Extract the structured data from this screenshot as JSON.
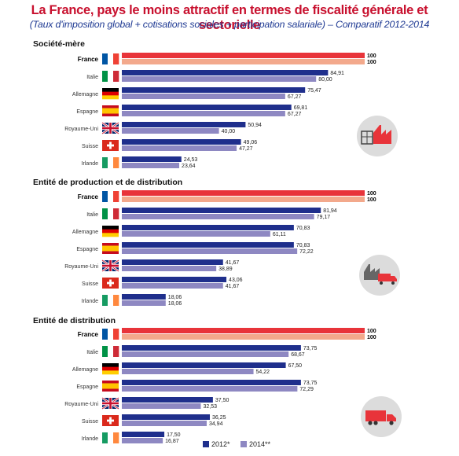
{
  "title": "La France, pays le moins attractif en termes de fiscalité générale et sectorielle",
  "subtitle": "(Taux d'imposition global + cotisations sociales + participation salariale) – Comparatif 2012-2014",
  "colors": {
    "title": "#c8102e",
    "subtitle": "#1f3a93",
    "france_2012": "#e8343a",
    "france_2014": "#f3a98c",
    "other_2012": "#1f2f8c",
    "other_2014": "#8e88c2",
    "icon_circle": "#dcdcdc",
    "icon_dark": "#666666",
    "icon_red": "#e8343a"
  },
  "chart_data": [
    {
      "type": "bar",
      "title": "Société-mère",
      "categories": [
        "France",
        "Italie",
        "Allemagne",
        "Espagne",
        "Royaume-Uni",
        "Suisse",
        "Irlande"
      ],
      "series": [
        {
          "name": "2012*",
          "values": [
            100,
            84.91,
            75.47,
            69.81,
            50.94,
            49.06,
            24.53
          ]
        },
        {
          "name": "2014**",
          "values": [
            100,
            80.0,
            67.27,
            67.27,
            40.0,
            47.27,
            23.64
          ]
        }
      ],
      "labels_2012": [
        "100",
        "84,91",
        "75,47",
        "69,81",
        "50,94",
        "49,06",
        "24,53"
      ],
      "labels_2014": [
        "100",
        "80,00",
        "67,27",
        "67,27",
        "40,00",
        "47,27",
        "23,64"
      ],
      "icon": "factory-icon",
      "ylim": [
        0,
        100
      ]
    },
    {
      "type": "bar",
      "title": "Entité de production et de distribution",
      "categories": [
        "France",
        "Italie",
        "Allemagne",
        "Espagne",
        "Royaume-Uni",
        "Suisse",
        "Irlande"
      ],
      "series": [
        {
          "name": "2012*",
          "values": [
            100,
            81.94,
            70.83,
            70.83,
            41.67,
            43.06,
            18.06
          ]
        },
        {
          "name": "2014**",
          "values": [
            100,
            79.17,
            61.11,
            72.22,
            38.89,
            41.67,
            18.06
          ]
        }
      ],
      "labels_2012": [
        "100",
        "81,94",
        "70,83",
        "70,83",
        "41,67",
        "43,06",
        "18,06"
      ],
      "labels_2014": [
        "100",
        "79,17",
        "61,11",
        "72,22",
        "38,89",
        "41,67",
        "18,06"
      ],
      "icon": "factory-truck-icon",
      "ylim": [
        0,
        100
      ]
    },
    {
      "type": "bar",
      "title": "Entité de distribution",
      "categories": [
        "France",
        "Italie",
        "Allemagne",
        "Espagne",
        "Royaume-Uni",
        "Suisse",
        "Irlande"
      ],
      "series": [
        {
          "name": "2012*",
          "values": [
            100,
            73.75,
            67.5,
            73.75,
            37.5,
            36.25,
            17.5
          ]
        },
        {
          "name": "2014**",
          "values": [
            100,
            68.67,
            54.22,
            72.29,
            32.53,
            34.94,
            16.87
          ]
        }
      ],
      "labels_2012": [
        "100",
        "73,75",
        "67,50",
        "73,75",
        "37,50",
        "36,25",
        "17,50"
      ],
      "labels_2014": [
        "100",
        "68,67",
        "54,22",
        "72,29",
        "32,53",
        "34,94",
        "16,87"
      ],
      "icon": "truck-icon",
      "ylim": [
        0,
        100
      ]
    }
  ],
  "legend": {
    "placement": "bottom-right",
    "items": [
      {
        "label": "2012*",
        "color": "#1f2f8c"
      },
      {
        "label": "2014**",
        "color": "#8e88c2"
      }
    ]
  },
  "flags": {
    "France": "flag-france",
    "Italie": "flag-italy",
    "Allemagne": "flag-germany",
    "Espagne": "flag-spain",
    "Royaume-Uni": "flag-uk",
    "Suisse": "flag-switzerland",
    "Irlande": "flag-ireland"
  }
}
